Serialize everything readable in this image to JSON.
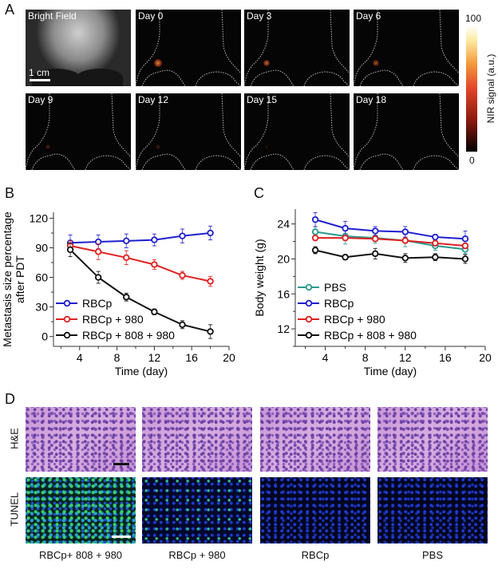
{
  "panel_a": {
    "label": "A",
    "tiles": [
      "Bright Field",
      "Day 0",
      "Day 3",
      "Day 6",
      "Day 9",
      "Day 12",
      "Day 15",
      "Day 18"
    ],
    "scale_bar": "1 cm",
    "colorbar": {
      "max": "100",
      "min": "0",
      "label": "NIR  signal (a.u.)",
      "colors": [
        "#000000",
        "#8b1a0e",
        "#e2452a",
        "#f59a3c",
        "#fde9a0",
        "#ffffff"
      ]
    },
    "nir_signal_intensity": [
      0,
      0.9,
      0.75,
      0.6,
      0.25,
      0.2,
      0.12,
      0
    ]
  },
  "panel_d": {
    "label": "D",
    "rows": [
      "H&E",
      "TUNEL"
    ],
    "columns": [
      "RBCp+ 808 + 980",
      "RBCp + 980",
      "RBCp",
      "PBS"
    ]
  },
  "chart_data": [
    {
      "panel": "B",
      "type": "line",
      "xlabel": "Time (day)",
      "ylabel": [
        "Metastasis  size percentage",
        "after PDT"
      ],
      "xlim": [
        1.2,
        20
      ],
      "ylim": [
        -10,
        126
      ],
      "xticks": [
        4,
        8,
        12,
        16,
        20
      ],
      "yticks": [
        0,
        30,
        60,
        90,
        120
      ],
      "legend": "bottom-left",
      "grid": false,
      "x": [
        3,
        6,
        9,
        12,
        15,
        18
      ],
      "series": [
        {
          "name": "RBCp",
          "color": "#1f1fd0",
          "values": [
            95,
            96,
            97,
            98,
            102,
            105
          ],
          "errors": [
            8,
            7,
            7,
            6,
            7,
            7
          ]
        },
        {
          "name": "RBCp + 980",
          "color": "#e02020",
          "values": [
            92,
            86,
            80,
            73,
            62,
            56
          ],
          "errors": [
            5,
            8,
            7,
            5,
            4,
            5
          ]
        },
        {
          "name": "RBCp + 808 + 980",
          "color": "#111111",
          "values": [
            88,
            60,
            40,
            25,
            12,
            5
          ],
          "errors": [
            7,
            6,
            4,
            3,
            4,
            7
          ]
        }
      ]
    },
    {
      "panel": "C",
      "type": "line",
      "xlabel": "Time (day)",
      "ylabel": [
        "Body weight (g)"
      ],
      "xlim": [
        1,
        20
      ],
      "ylim": [
        10,
        25.7
      ],
      "xticks": [
        4,
        8,
        12,
        16,
        20
      ],
      "yticks": [
        12,
        16,
        20,
        24
      ],
      "legend": "bottom-left",
      "grid": false,
      "x": [
        3,
        6,
        9,
        12,
        15,
        18
      ],
      "series": [
        {
          "name": "PBS",
          "color": "#2a9a8e",
          "values": [
            23.1,
            22.6,
            22.4,
            22.1,
            21.5,
            21.1
          ],
          "errors": [
            0.6,
            0.9,
            0.6,
            0.7,
            0.5,
            0.5
          ]
        },
        {
          "name": "RBCp",
          "color": "#1f1fd0",
          "values": [
            24.5,
            23.5,
            23.2,
            23.1,
            22.5,
            22.3
          ],
          "errors": [
            0.8,
            0.8,
            0.5,
            0.6,
            0.3,
            0.9
          ]
        },
        {
          "name": "RBCp + 980",
          "color": "#e02020",
          "values": [
            22.4,
            22.4,
            22.3,
            22.1,
            21.8,
            21.5
          ],
          "errors": [
            0.3,
            0.3,
            0.3,
            0.3,
            0.3,
            0.3
          ]
        },
        {
          "name": "RBCp + 808 + 980",
          "color": "#111111",
          "values": [
            21.0,
            20.2,
            20.6,
            20.1,
            20.2,
            20.0
          ],
          "errors": [
            0.4,
            0.3,
            0.6,
            0.5,
            0.4,
            0.5
          ]
        }
      ]
    }
  ]
}
